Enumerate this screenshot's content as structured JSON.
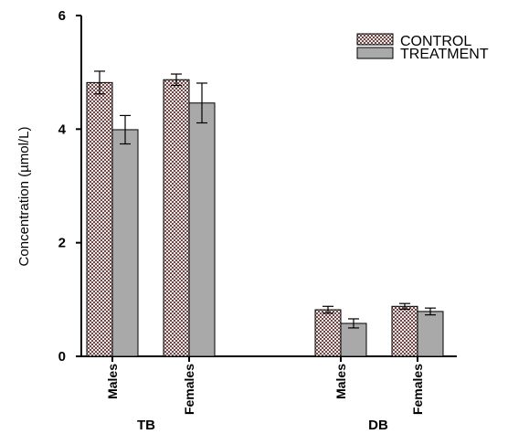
{
  "chart_data": {
    "type": "bar",
    "ylabel": "Concentration (µmol/L)",
    "ylim": [
      0,
      6
    ],
    "yticks": [
      "0",
      "2",
      "4",
      "6"
    ],
    "groups": [
      {
        "name": "TB",
        "categories": [
          "Males",
          "Females"
        ]
      },
      {
        "name": "DB",
        "categories": [
          "Males",
          "Females"
        ]
      }
    ],
    "series": [
      {
        "name": "CONTROL",
        "pattern": "checkered",
        "colors": [
          "#6b4a4a",
          "#f2e6e6"
        ],
        "values": [
          4.82,
          4.87,
          0.82,
          0.88
        ],
        "errors": [
          0.2,
          0.1,
          0.06,
          0.05
        ]
      },
      {
        "name": "TREATMENT",
        "color": "#a9a9a9",
        "values": [
          3.99,
          4.46,
          0.58,
          0.79
        ],
        "errors": [
          0.25,
          0.35,
          0.08,
          0.06
        ]
      }
    ],
    "legend": "top-right",
    "grid": false
  }
}
